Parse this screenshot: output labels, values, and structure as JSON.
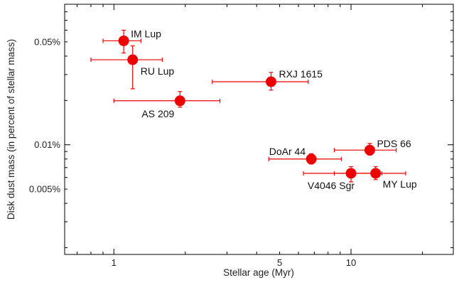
{
  "chart_data": {
    "type": "scatter",
    "title": "",
    "xlabel": "Stellar age (Myr)",
    "ylabel": "Disk dust mass (in percent of stellar mass)",
    "xscale": "log",
    "yscale": "log",
    "xlim": [
      0.62,
      27
    ],
    "ylim": [
      0.0018,
      0.09
    ],
    "x_ticks": [
      {
        "value": 1,
        "label": "1"
      },
      {
        "value": 5,
        "label": "5"
      },
      {
        "value": 10,
        "label": "10"
      }
    ],
    "y_ticks": [
      {
        "value": 0.005,
        "label": "0.005%"
      },
      {
        "value": 0.01,
        "label": "0.01%"
      },
      {
        "value": 0.05,
        "label": "0.05%"
      }
    ],
    "grid": false,
    "legend": "none",
    "marker_color": "#ee0000",
    "points": [
      {
        "name": "IM Lup",
        "x": 1.1,
        "x_low": 0.9,
        "x_high": 1.3,
        "y": 0.0508,
        "y_low": 0.042,
        "y_high": 0.06
      },
      {
        "name": "RU Lup",
        "x": 1.2,
        "x_low": 0.8,
        "x_high": 1.6,
        "y": 0.0378,
        "y_low": 0.024,
        "y_high": 0.047
      },
      {
        "name": "RXJ 1615",
        "x": 4.6,
        "x_low": 2.6,
        "x_high": 6.6,
        "y": 0.0268,
        "y_low": 0.0235,
        "y_high": 0.031
      },
      {
        "name": "AS 209",
        "x": 1.9,
        "x_low": 1.0,
        "x_high": 2.8,
        "y": 0.0199,
        "y_low": 0.018,
        "y_high": 0.023
      },
      {
        "name": "PDS 66",
        "x": 12,
        "x_low": 8.5,
        "x_high": 15.5,
        "y": 0.0092,
        "y_low": 0.0085,
        "y_high": 0.0102
      },
      {
        "name": "DoAr 44",
        "x": 6.8,
        "x_low": 4.5,
        "x_high": 9.1,
        "y": 0.008,
        "y_low": 0.0074,
        "y_high": 0.0087
      },
      {
        "name": "V4046 Sgr",
        "x": 10,
        "x_low": 6.3,
        "x_high": 13.5,
        "y": 0.0064,
        "y_low": 0.0056,
        "y_high": 0.0071
      },
      {
        "name": "MY Lup",
        "x": 12.7,
        "x_low": 8.5,
        "x_high": 17,
        "y": 0.0064,
        "y_low": 0.0058,
        "y_high": 0.0071
      }
    ]
  }
}
